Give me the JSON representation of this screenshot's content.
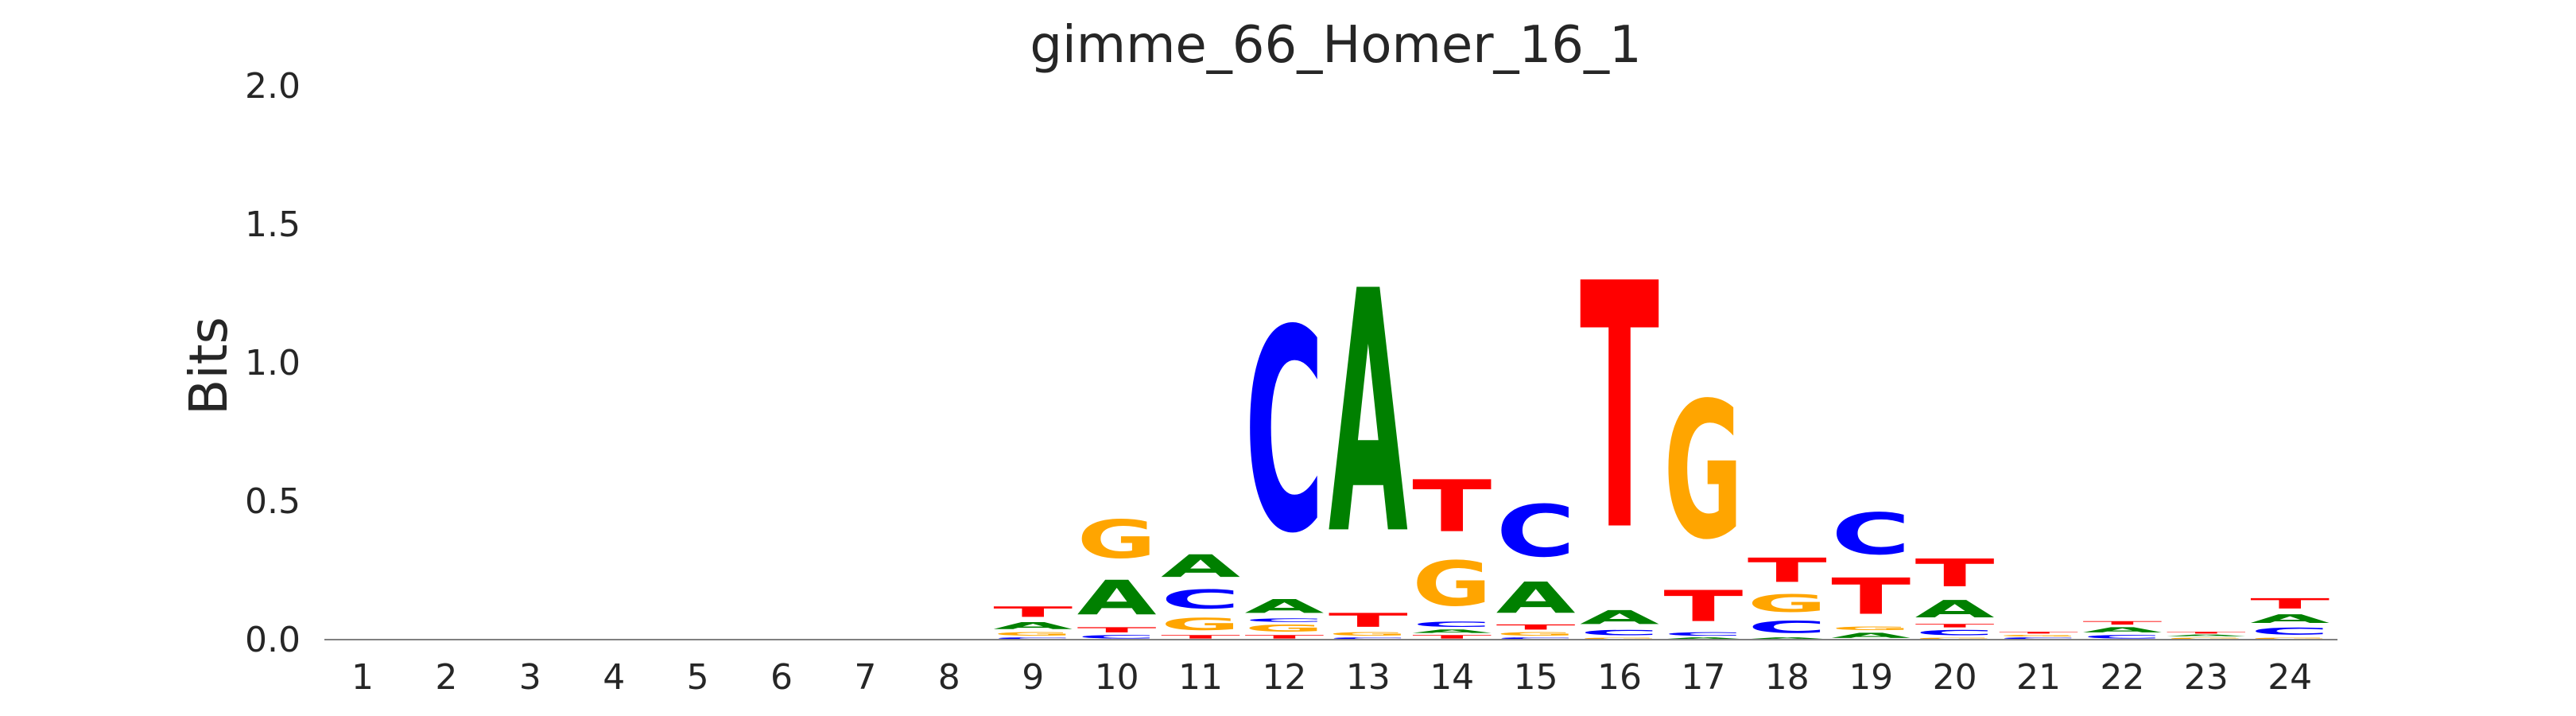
{
  "chart_data": {
    "type": "sequence-logo",
    "title": "gimme_66_Homer_16_1",
    "ylabel": "Bits",
    "ylim": [
      0,
      2.0
    ],
    "yticks": [
      "0.0",
      "0.5",
      "1.0",
      "1.5",
      "2.0"
    ],
    "positions": [
      "1",
      "2",
      "3",
      "4",
      "5",
      "6",
      "7",
      "8",
      "9",
      "10",
      "11",
      "12",
      "13",
      "14",
      "15",
      "16",
      "17",
      "18",
      "19",
      "20",
      "21",
      "22",
      "23",
      "24"
    ],
    "colors": {
      "A": "#008000",
      "C": "#0000ff",
      "G": "#ffa500",
      "T": "#ff0000"
    },
    "columns": [
      [],
      [],
      [],
      [],
      [],
      [],
      [],
      [],
      [
        [
          "C",
          0.01
        ],
        [
          "G",
          0.02
        ],
        [
          "A",
          0.04
        ],
        [
          "T",
          0.06
        ]
      ],
      [
        [
          "C",
          0.02
        ],
        [
          "T",
          0.03
        ],
        [
          "A",
          0.2
        ],
        [
          "G",
          0.22
        ]
      ],
      [
        [
          "T",
          0.02
        ],
        [
          "G",
          0.07
        ],
        [
          "C",
          0.11
        ],
        [
          "A",
          0.13
        ]
      ],
      [
        [
          "T",
          0.02
        ],
        [
          "G",
          0.04
        ],
        [
          "C",
          0.02
        ],
        [
          "A",
          0.08
        ],
        [
          "C",
          1.17
        ]
      ],
      [
        [
          "C",
          0.01
        ],
        [
          "G",
          0.02
        ],
        [
          "T",
          0.08
        ],
        [
          "A",
          1.4
        ]
      ],
      [
        [
          "T",
          0.02
        ],
        [
          "A",
          0.02
        ],
        [
          "C",
          0.03
        ],
        [
          "G",
          0.26
        ],
        [
          "T",
          0.3
        ]
      ],
      [
        [
          "C",
          0.01
        ],
        [
          "G",
          0.02
        ],
        [
          "T",
          0.03
        ],
        [
          "A",
          0.18
        ],
        [
          "C",
          0.3
        ]
      ],
      [
        [
          "G",
          0.01
        ],
        [
          "C",
          0.03
        ],
        [
          "A",
          0.08
        ],
        [
          "T",
          1.42
        ]
      ],
      [
        [
          "A",
          0.01
        ],
        [
          "C",
          0.02
        ],
        [
          "T",
          0.18
        ],
        [
          "G",
          0.79
        ]
      ],
      [
        [
          "A",
          0.01
        ],
        [
          "C",
          0.07
        ],
        [
          "G",
          0.1
        ],
        [
          "T",
          0.14
        ]
      ],
      [
        [
          "A",
          0.03
        ],
        [
          "G",
          0.02
        ],
        [
          "T",
          0.21
        ],
        [
          "C",
          0.24
        ]
      ],
      [
        [
          "G",
          0.01
        ],
        [
          "C",
          0.03
        ],
        [
          "T",
          0.02
        ],
        [
          "A",
          0.1
        ],
        [
          "T",
          0.16
        ]
      ],
      [
        [
          "C",
          0.01
        ],
        [
          "G",
          0.01
        ],
        [
          "T",
          0.01
        ]
      ],
      [
        [
          "C",
          0.02
        ],
        [
          "A",
          0.03
        ],
        [
          "T",
          0.02
        ]
      ],
      [
        [
          "G",
          0.01
        ],
        [
          "A",
          0.01
        ],
        [
          "T",
          0.01
        ]
      ],
      [
        [
          "G",
          0.01
        ],
        [
          "C",
          0.04
        ],
        [
          "A",
          0.05
        ],
        [
          "T",
          0.06
        ]
      ]
    ]
  }
}
